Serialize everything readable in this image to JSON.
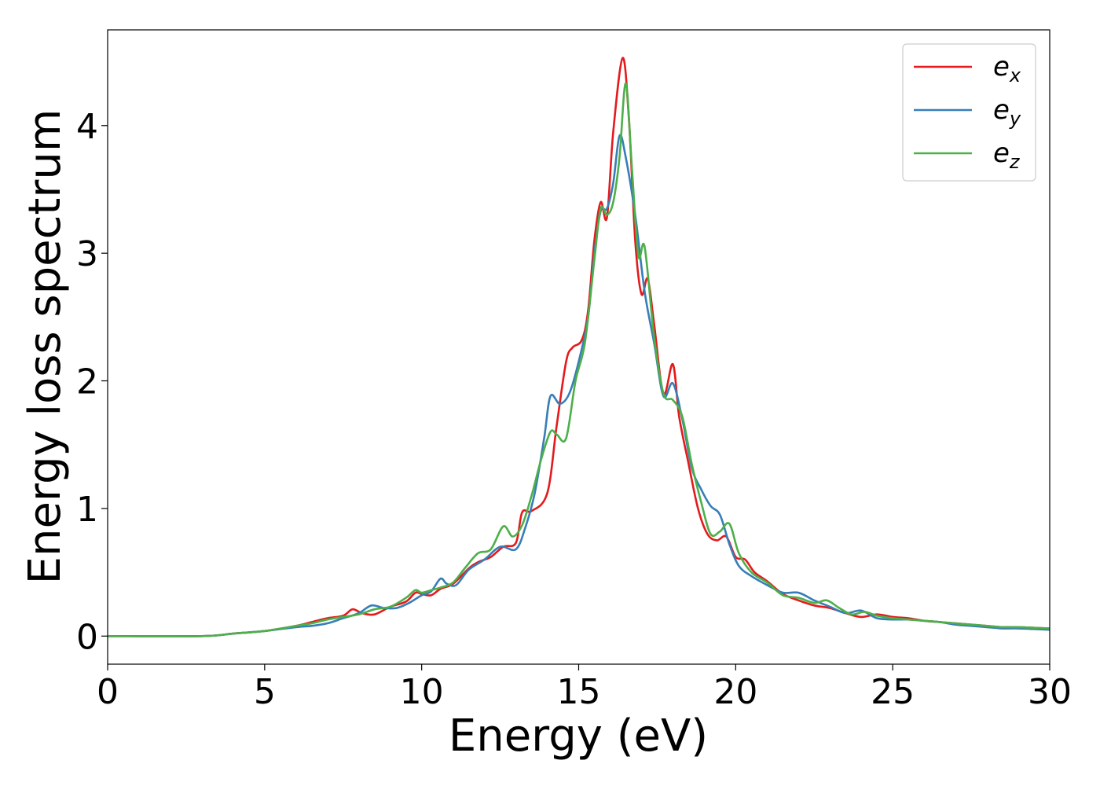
{
  "chart_data": {
    "type": "line",
    "title": "",
    "xlabel": "Energy (eV)",
    "ylabel": "Energy loss spectrum",
    "xlim": [
      0,
      30
    ],
    "ylim": [
      -0.22,
      4.75
    ],
    "xticks": [
      0,
      5,
      10,
      15,
      20,
      25,
      30
    ],
    "xtick_labels": [
      "0",
      "5",
      "10",
      "15",
      "20",
      "25",
      "30"
    ],
    "yticks": [
      0,
      1,
      2,
      3,
      4
    ],
    "ytick_labels": [
      "0",
      "1",
      "2",
      "3",
      "4"
    ],
    "grid": false,
    "legend_position": "top-right",
    "series": [
      {
        "name": "e_x",
        "label_main": "e",
        "label_sub": "x",
        "color": "#e41a1c",
        "x": [
          0,
          3,
          4,
          5,
          6,
          6.5,
          7,
          7.5,
          7.8,
          8.1,
          8.5,
          9,
          9.5,
          9.8,
          10,
          10.3,
          10.6,
          11,
          11.5,
          11.8,
          12.2,
          12.6,
          13,
          13.2,
          13.5,
          14,
          14.3,
          14.6,
          14.8,
          15.1,
          15.3,
          15.5,
          15.7,
          15.9,
          16.1,
          16.4,
          16.6,
          16.8,
          17,
          17.2,
          17.4,
          17.7,
          18,
          18.2,
          18.5,
          18.8,
          19.1,
          19.4,
          19.7,
          20,
          20.3,
          20.6,
          21,
          21.5,
          22,
          22.5,
          23,
          23.5,
          24,
          24.5,
          25,
          25.5,
          26,
          26.5,
          27,
          27.5,
          28,
          28.5,
          29,
          30
        ],
        "y": [
          0,
          0,
          0.02,
          0.04,
          0.08,
          0.11,
          0.14,
          0.16,
          0.21,
          0.18,
          0.17,
          0.23,
          0.27,
          0.34,
          0.33,
          0.32,
          0.37,
          0.41,
          0.53,
          0.58,
          0.62,
          0.7,
          0.73,
          0.97,
          0.98,
          1.12,
          1.65,
          2.15,
          2.26,
          2.32,
          2.55,
          3.1,
          3.4,
          3.28,
          3.95,
          4.53,
          4.05,
          3.1,
          2.68,
          2.8,
          2.45,
          1.9,
          2.13,
          1.72,
          1.35,
          1.0,
          0.8,
          0.75,
          0.78,
          0.62,
          0.6,
          0.5,
          0.43,
          0.33,
          0.28,
          0.24,
          0.22,
          0.18,
          0.15,
          0.17,
          0.15,
          0.14,
          0.12,
          0.11,
          0.1,
          0.09,
          0.08,
          0.07,
          0.07,
          0.06
        ]
      },
      {
        "name": "e_y",
        "label_main": "e",
        "label_sub": "y",
        "color": "#377eb8",
        "x": [
          0,
          3,
          4,
          5,
          6,
          6.5,
          7,
          7.5,
          8,
          8.4,
          8.8,
          9.2,
          9.6,
          10,
          10.3,
          10.6,
          10.8,
          11.1,
          11.5,
          12,
          12.5,
          13,
          13.3,
          13.6,
          13.9,
          14.1,
          14.4,
          14.7,
          15,
          15.3,
          15.5,
          15.7,
          15.9,
          16.1,
          16.3,
          16.5,
          16.8,
          17.1,
          17.4,
          17.7,
          18,
          18.3,
          18.6,
          18.9,
          19.2,
          19.5,
          19.8,
          20.1,
          20.5,
          21,
          21.5,
          22,
          22.5,
          23,
          23.5,
          24,
          24.5,
          25,
          25.5,
          26,
          26.5,
          27,
          27.5,
          28,
          28.5,
          29,
          30
        ],
        "y": [
          0,
          0,
          0.02,
          0.04,
          0.07,
          0.08,
          0.1,
          0.14,
          0.18,
          0.24,
          0.22,
          0.22,
          0.26,
          0.32,
          0.35,
          0.45,
          0.41,
          0.4,
          0.52,
          0.6,
          0.7,
          0.68,
          0.85,
          1.12,
          1.55,
          1.88,
          1.82,
          1.9,
          2.15,
          2.5,
          3.0,
          3.33,
          3.35,
          3.55,
          3.92,
          3.75,
          3.3,
          2.7,
          2.3,
          1.88,
          1.98,
          1.7,
          1.32,
          1.15,
          1.02,
          0.95,
          0.72,
          0.55,
          0.47,
          0.4,
          0.34,
          0.34,
          0.28,
          0.23,
          0.18,
          0.2,
          0.14,
          0.13,
          0.13,
          0.12,
          0.11,
          0.09,
          0.08,
          0.07,
          0.06,
          0.06,
          0.05
        ]
      },
      {
        "name": "e_z",
        "label_main": "e",
        "label_sub": "z",
        "color": "#4daf4a",
        "x": [
          0,
          3,
          4,
          5,
          6,
          6.5,
          7,
          7.5,
          8,
          8.5,
          9,
          9.5,
          9.8,
          10,
          10.3,
          10.6,
          11,
          11.4,
          11.8,
          12.2,
          12.6,
          12.9,
          13.2,
          13.5,
          13.8,
          14.1,
          14.3,
          14.6,
          14.9,
          15.2,
          15.5,
          15.7,
          15.9,
          16.1,
          16.3,
          16.5,
          16.7,
          16.9,
          17.1,
          17.4,
          17.7,
          18,
          18.3,
          18.6,
          18.9,
          19.2,
          19.5,
          19.8,
          20.1,
          20.5,
          21,
          21.5,
          22,
          22.5,
          22.9,
          23.3,
          23.7,
          24.1,
          24.5,
          25,
          25.5,
          26,
          26.5,
          27,
          27.5,
          28,
          28.5,
          29,
          30
        ],
        "y": [
          0,
          0,
          0.02,
          0.04,
          0.08,
          0.1,
          0.13,
          0.15,
          0.17,
          0.21,
          0.23,
          0.3,
          0.36,
          0.34,
          0.36,
          0.38,
          0.42,
          0.54,
          0.65,
          0.68,
          0.86,
          0.78,
          0.87,
          1.1,
          1.38,
          1.6,
          1.58,
          1.55,
          2.0,
          2.3,
          2.95,
          3.35,
          3.3,
          3.4,
          3.75,
          4.33,
          3.65,
          2.98,
          3.05,
          2.35,
          1.9,
          1.85,
          1.72,
          1.35,
          1.05,
          0.8,
          0.82,
          0.88,
          0.65,
          0.5,
          0.42,
          0.32,
          0.3,
          0.26,
          0.28,
          0.22,
          0.17,
          0.19,
          0.16,
          0.14,
          0.13,
          0.12,
          0.11,
          0.1,
          0.09,
          0.08,
          0.07,
          0.07,
          0.06
        ]
      }
    ]
  }
}
